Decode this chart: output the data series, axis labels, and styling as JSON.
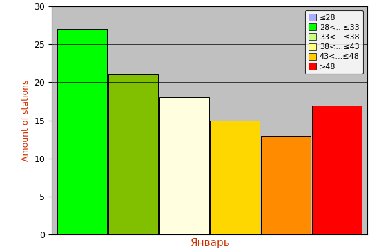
{
  "ylabel": "Amount of stations",
  "xlabel": "Январь",
  "ylim": [
    0,
    30
  ],
  "yticks": [
    0,
    5,
    10,
    15,
    20,
    25,
    30
  ],
  "bg_color": "#c0c0c0",
  "fig_bg_color": "#ffffff",
  "legend_labels": [
    "≤28",
    "28<...≤33",
    "33<...≤38",
    "38<...≤43",
    "43<...≤48",
    ">48"
  ],
  "legend_colors": [
    "#aaaaff",
    "#00ff00",
    "#c8ff80",
    "#ffff80",
    "#ffcc00",
    "#ff0000"
  ],
  "bar_colors": [
    "#00ff00",
    "#80c000",
    "#ffffe0",
    "#ffd700",
    "#ff8c00",
    "#ff0000"
  ],
  "bar_values": [
    27,
    21,
    18,
    15,
    13,
    17
  ],
  "axis_label_color": "#cc3300",
  "tick_label_color": "#000000",
  "ylabel_color": "#cc3300",
  "xlabel_color": "#cc3300"
}
